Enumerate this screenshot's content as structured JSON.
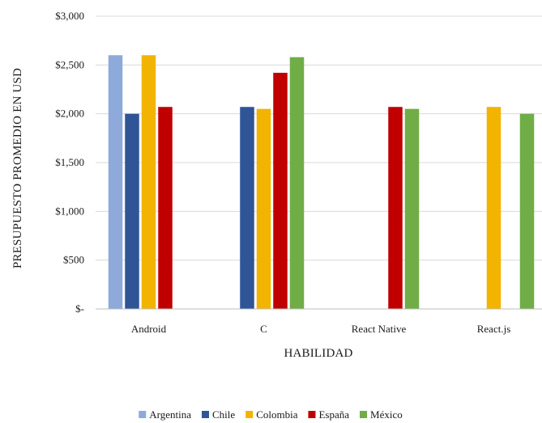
{
  "chart_data": {
    "type": "bar",
    "xlabel": "HABILIDAD",
    "ylabel": "PRESUPUESTO PROMEDIO EN USD",
    "categories": [
      "Android",
      "C",
      "React Native",
      "React.js"
    ],
    "ylim": [
      0,
      3000
    ],
    "yticks": [
      {
        "value": 0,
        "label": "$-"
      },
      {
        "value": 500,
        "label": "$500"
      },
      {
        "value": 1000,
        "label": "$1,000"
      },
      {
        "value": 1500,
        "label": "$1,500"
      },
      {
        "value": 2000,
        "label": "$2,000"
      },
      {
        "value": 2500,
        "label": "$2,500"
      },
      {
        "value": 3000,
        "label": "$3,000"
      }
    ],
    "grid": true,
    "legend_position": "bottom",
    "series": [
      {
        "name": "Argentina",
        "color": "#8eaadb",
        "values": [
          2600,
          null,
          null,
          null
        ]
      },
      {
        "name": "Chile",
        "color": "#2f5597",
        "values": [
          2000,
          2070,
          null,
          null
        ]
      },
      {
        "name": "Colombia",
        "color": "#f2b400",
        "values": [
          2600,
          2050,
          null,
          2070
        ]
      },
      {
        "name": "España",
        "color": "#c00000",
        "values": [
          2070,
          2420,
          2070,
          null
        ]
      },
      {
        "name": "México",
        "color": "#70ad47",
        "values": [
          null,
          2580,
          2050,
          2000
        ]
      }
    ]
  }
}
